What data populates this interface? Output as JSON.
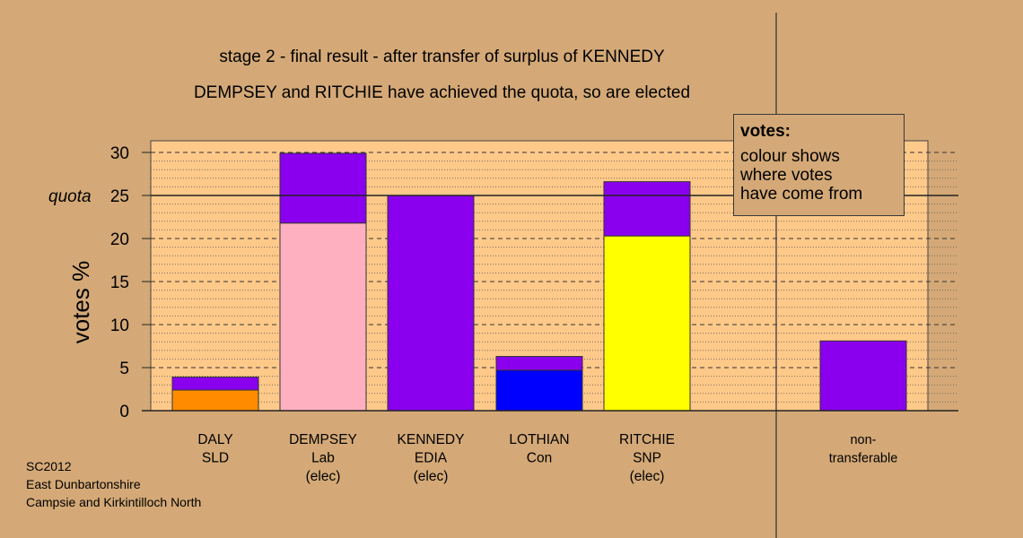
{
  "title": "stage 2 - final result - after transfer of surplus of KENNEDY",
  "subtitle": "DEMPSEY and RITCHIE have achieved the quota, so are elected",
  "legend": {
    "heading": "votes:",
    "lines": [
      "colour shows",
      "where votes",
      "have come from"
    ]
  },
  "footer": [
    "SC2012",
    "East Dunbartonshire",
    "Campsie and Kirkintilloch North"
  ],
  "colors": {
    "background": "#d4a977",
    "plot_area": "#ffc98a",
    "DALY": "#ff8c00",
    "DEMPSEY": "#ffb0c0",
    "KENNEDY": "#8a00ee",
    "LOTHIAN": "#0000ff",
    "RITCHIE": "#ffff00"
  },
  "chart_data": {
    "type": "bar",
    "stacked": true,
    "ylabel": "votes %",
    "xlabel": "",
    "ylim": [
      0,
      30
    ],
    "yticks": [
      0,
      5,
      10,
      15,
      20,
      25,
      30
    ],
    "quota": 25,
    "quota_label": "quota",
    "grid": true,
    "categories": [
      [
        "DALY",
        "SLD"
      ],
      [
        "DEMPSEY",
        "Lab",
        "(elec)"
      ],
      [
        "KENNEDY",
        "EDIA",
        "(elec)"
      ],
      [
        "LOTHIAN",
        "Con"
      ],
      [
        "RITCHIE",
        "SNP",
        "(elec)"
      ],
      [
        "non-",
        "transferable"
      ]
    ],
    "bars": [
      {
        "candidate": "DALY",
        "segments": [
          {
            "from": "DALY",
            "value": 2.4
          },
          {
            "from": "KENNEDY",
            "value": 1.5
          }
        ]
      },
      {
        "candidate": "DEMPSEY",
        "segments": [
          {
            "from": "DEMPSEY",
            "value": 21.8
          },
          {
            "from": "KENNEDY",
            "value": 8.1
          }
        ]
      },
      {
        "candidate": "KENNEDY",
        "segments": [
          {
            "from": "KENNEDY",
            "value": 25.0
          }
        ]
      },
      {
        "candidate": "LOTHIAN",
        "segments": [
          {
            "from": "LOTHIAN",
            "value": 4.7
          },
          {
            "from": "KENNEDY",
            "value": 1.6
          }
        ]
      },
      {
        "candidate": "RITCHIE",
        "segments": [
          {
            "from": "RITCHIE",
            "value": 20.3
          },
          {
            "from": "KENNEDY",
            "value": 6.3
          }
        ]
      },
      {
        "candidate": "non-transferable",
        "segments": [
          {
            "from": "KENNEDY",
            "value": 8.1
          }
        ]
      }
    ]
  }
}
